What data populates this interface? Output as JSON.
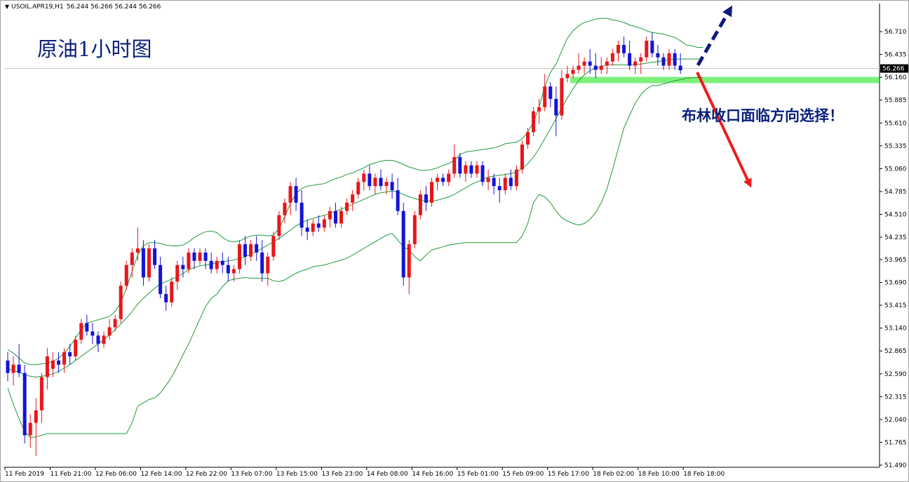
{
  "header": {
    "symbol": "USOIL.APR19,H1",
    "open": "56.244",
    "high": "56.266",
    "low": "56.244",
    "close": "56.266"
  },
  "annotations": {
    "title": "原油1小时图",
    "bollinger_note": "布林收口面临方向选择！"
  },
  "colors": {
    "bull_candle": "#e8161b",
    "bear_candle": "#1414d6",
    "bollinger": "#1e9a3c",
    "support_zone": "#7ef07a",
    "up_arrow": "#0e1a80",
    "down_arrow": "#ee1c1c",
    "price_tag_bg": "#000000",
    "bid_line": "#c0c0c0"
  },
  "chart_data": {
    "type": "candlestick",
    "title": "原油1小时图",
    "symbol": "USOIL.APR19",
    "timeframe": "H1",
    "ylim": [
      51.49,
      56.93
    ],
    "grid": false,
    "current_price": 56.266,
    "price_labels": [
      "56.710",
      "56.435",
      "56.160",
      "55.885",
      "55.610",
      "55.335",
      "55.060",
      "54.785",
      "54.510",
      "54.235",
      "53.965",
      "53.690",
      "53.415",
      "53.140",
      "52.865",
      "52.590",
      "52.315",
      "52.040",
      "51.765",
      "51.490"
    ],
    "time_labels": [
      {
        "label": "11 Feb 2019",
        "index": 0
      },
      {
        "label": "11 Feb 21:00",
        "index": 8
      },
      {
        "label": "12 Feb 06:00",
        "index": 16
      },
      {
        "label": "12 Feb 14:00",
        "index": 24
      },
      {
        "label": "12 Feb 22:00",
        "index": 32
      },
      {
        "label": "13 Feb 07:00",
        "index": 40
      },
      {
        "label": "13 Feb 15:00",
        "index": 48
      },
      {
        "label": "13 Feb 23:00",
        "index": 56
      },
      {
        "label": "14 Feb 08:00",
        "index": 64
      },
      {
        "label": "14 Feb 16:00",
        "index": 72
      },
      {
        "label": "15 Feb 01:00",
        "index": 80
      },
      {
        "label": "15 Feb 09:00",
        "index": 88
      },
      {
        "label": "15 Feb 17:00",
        "index": 96
      },
      {
        "label": "18 Feb 02:00",
        "index": 104
      },
      {
        "label": "18 Feb 10:00",
        "index": 112
      },
      {
        "label": "18 Feb 18:00",
        "index": 120
      }
    ],
    "candles": [
      [
        52.75,
        52.85,
        52.5,
        52.6
      ],
      [
        52.6,
        52.8,
        52.45,
        52.7
      ],
      [
        52.7,
        52.95,
        52.55,
        52.6
      ],
      [
        52.6,
        52.7,
        51.75,
        51.85
      ],
      [
        51.85,
        52.1,
        51.7,
        52.0
      ],
      [
        52.0,
        52.3,
        51.6,
        52.15
      ],
      [
        52.15,
        52.6,
        52.0,
        52.55
      ],
      [
        52.55,
        52.9,
        52.4,
        52.8
      ],
      [
        52.65,
        52.85,
        52.55,
        52.75
      ],
      [
        52.75,
        52.85,
        52.6,
        52.7
      ],
      [
        52.7,
        52.9,
        52.6,
        52.85
      ],
      [
        52.85,
        52.95,
        52.7,
        52.8
      ],
      [
        52.8,
        53.05,
        52.75,
        53.0
      ],
      [
        53.0,
        53.25,
        52.95,
        53.2
      ],
      [
        53.2,
        53.3,
        53.05,
        53.1
      ],
      [
        53.1,
        53.2,
        52.95,
        53.05
      ],
      [
        53.05,
        53.1,
        52.85,
        52.95
      ],
      [
        52.95,
        53.1,
        52.9,
        53.05
      ],
      [
        53.05,
        53.25,
        53.0,
        53.15
      ],
      [
        53.15,
        53.3,
        53.1,
        53.25
      ],
      [
        53.25,
        53.7,
        53.2,
        53.65
      ],
      [
        53.65,
        53.95,
        53.6,
        53.9
      ],
      [
        53.9,
        54.1,
        53.75,
        54.05
      ],
      [
        54.05,
        54.35,
        53.95,
        54.1
      ],
      [
        54.1,
        54.2,
        53.65,
        53.75
      ],
      [
        53.75,
        54.15,
        53.7,
        54.1
      ],
      [
        54.1,
        54.2,
        53.85,
        53.9
      ],
      [
        53.9,
        54.0,
        53.5,
        53.55
      ],
      [
        53.55,
        53.65,
        53.35,
        53.45
      ],
      [
        53.45,
        53.75,
        53.4,
        53.7
      ],
      [
        53.7,
        53.95,
        53.6,
        53.9
      ],
      [
        53.9,
        54.0,
        53.75,
        53.85
      ],
      [
        53.85,
        54.1,
        53.8,
        54.05
      ],
      [
        54.05,
        54.1,
        53.85,
        53.95
      ],
      [
        53.95,
        54.1,
        53.9,
        54.05
      ],
      [
        54.05,
        54.1,
        53.85,
        53.95
      ],
      [
        53.95,
        54.05,
        53.8,
        53.85
      ],
      [
        53.85,
        54.0,
        53.8,
        53.95
      ],
      [
        53.95,
        54.05,
        53.8,
        53.9
      ],
      [
        53.9,
        54.0,
        53.7,
        53.8
      ],
      [
        53.8,
        53.9,
        53.7,
        53.85
      ],
      [
        53.85,
        54.2,
        53.8,
        54.15
      ],
      [
        54.15,
        54.25,
        53.9,
        54.0
      ],
      [
        54.0,
        54.2,
        53.95,
        54.15
      ],
      [
        54.15,
        54.25,
        53.95,
        54.05
      ],
      [
        54.05,
        54.2,
        53.7,
        53.8
      ],
      [
        53.8,
        54.05,
        53.65,
        54.0
      ],
      [
        54.0,
        54.3,
        53.95,
        54.25
      ],
      [
        54.25,
        54.55,
        54.2,
        54.5
      ],
      [
        54.5,
        54.7,
        54.4,
        54.65
      ],
      [
        54.65,
        54.9,
        54.5,
        54.85
      ],
      [
        54.85,
        54.95,
        54.55,
        54.65
      ],
      [
        54.65,
        54.8,
        54.25,
        54.35
      ],
      [
        54.35,
        54.45,
        54.2,
        54.3
      ],
      [
        54.3,
        54.45,
        54.25,
        54.4
      ],
      [
        54.4,
        54.5,
        54.3,
        54.35
      ],
      [
        54.35,
        54.5,
        54.3,
        54.45
      ],
      [
        54.45,
        54.6,
        54.35,
        54.55
      ],
      [
        54.55,
        54.65,
        54.35,
        54.4
      ],
      [
        54.4,
        54.6,
        54.35,
        54.55
      ],
      [
        54.55,
        54.7,
        54.5,
        54.65
      ],
      [
        54.65,
        54.8,
        54.55,
        54.75
      ],
      [
        54.75,
        54.95,
        54.7,
        54.9
      ],
      [
        54.9,
        55.05,
        54.8,
        55.0
      ],
      [
        55.0,
        55.1,
        54.8,
        54.85
      ],
      [
        54.85,
        55.0,
        54.75,
        54.95
      ],
      [
        54.95,
        55.05,
        54.8,
        54.85
      ],
      [
        54.85,
        54.95,
        54.75,
        54.9
      ],
      [
        54.9,
        55.0,
        54.7,
        54.8
      ],
      [
        54.8,
        54.95,
        54.5,
        54.55
      ],
      [
        54.55,
        54.65,
        53.65,
        53.75
      ],
      [
        53.75,
        54.2,
        53.55,
        54.15
      ],
      [
        54.15,
        54.55,
        54.1,
        54.5
      ],
      [
        54.5,
        54.8,
        54.45,
        54.75
      ],
      [
        54.75,
        54.85,
        54.55,
        54.65
      ],
      [
        54.65,
        54.95,
        54.6,
        54.9
      ],
      [
        54.9,
        55.0,
        54.8,
        54.95
      ],
      [
        54.95,
        55.0,
        54.85,
        54.9
      ],
      [
        54.9,
        55.05,
        54.85,
        55.0
      ],
      [
        55.0,
        55.35,
        54.95,
        55.2
      ],
      [
        55.2,
        55.25,
        54.95,
        55.0
      ],
      [
        55.0,
        55.15,
        54.9,
        55.1
      ],
      [
        55.1,
        55.15,
        54.95,
        55.0
      ],
      [
        55.0,
        55.15,
        54.95,
        55.1
      ],
      [
        55.1,
        55.15,
        54.85,
        54.9
      ],
      [
        54.9,
        55.05,
        54.8,
        54.95
      ],
      [
        54.95,
        55.0,
        54.75,
        54.85
      ],
      [
        54.85,
        54.95,
        54.65,
        54.8
      ],
      [
        54.8,
        55.0,
        54.75,
        54.95
      ],
      [
        54.95,
        55.05,
        54.8,
        54.85
      ],
      [
        54.85,
        55.1,
        54.8,
        55.05
      ],
      [
        55.05,
        55.4,
        55.0,
        55.35
      ],
      [
        55.35,
        55.55,
        55.3,
        55.5
      ],
      [
        55.5,
        55.8,
        55.45,
        55.75
      ],
      [
        55.75,
        55.9,
        55.6,
        55.8
      ],
      [
        55.8,
        56.2,
        55.75,
        56.05
      ],
      [
        56.05,
        56.1,
        55.8,
        55.9
      ],
      [
        55.9,
        56.05,
        55.45,
        55.7
      ],
      [
        55.7,
        56.25,
        55.65,
        56.15
      ],
      [
        56.15,
        56.3,
        56.1,
        56.2
      ],
      [
        56.2,
        56.3,
        56.15,
        56.25
      ],
      [
        56.25,
        56.45,
        56.2,
        56.3
      ],
      [
        56.3,
        56.4,
        56.2,
        56.35
      ],
      [
        56.35,
        56.5,
        56.2,
        56.3
      ],
      [
        56.3,
        56.45,
        56.15,
        56.25
      ],
      [
        56.25,
        56.4,
        56.2,
        56.3
      ],
      [
        56.3,
        56.4,
        56.2,
        56.35
      ],
      [
        56.35,
        56.5,
        56.3,
        56.45
      ],
      [
        56.45,
        56.6,
        56.35,
        56.55
      ],
      [
        56.55,
        56.65,
        56.4,
        56.45
      ],
      [
        56.45,
        56.6,
        56.25,
        56.3
      ],
      [
        56.3,
        56.4,
        56.2,
        56.35
      ],
      [
        56.35,
        56.45,
        56.2,
        56.4
      ],
      [
        56.4,
        56.65,
        56.35,
        56.6
      ],
      [
        56.6,
        56.7,
        56.4,
        56.45
      ],
      [
        56.45,
        56.55,
        56.3,
        56.4
      ],
      [
        56.4,
        56.45,
        56.25,
        56.3
      ],
      [
        56.3,
        56.5,
        56.25,
        56.45
      ],
      [
        56.45,
        56.5,
        56.25,
        56.3
      ],
      [
        56.3,
        56.45,
        56.2,
        56.244
      ]
    ],
    "bollinger_upper": [
      52.88,
      52.84,
      52.78,
      52.72,
      52.7,
      52.7,
      52.71,
      52.72,
      52.74,
      52.78,
      52.84,
      52.92,
      53.02,
      53.12,
      53.2,
      53.22,
      53.24,
      53.26,
      53.28,
      53.34,
      53.45,
      53.62,
      53.82,
      54.02,
      54.13,
      54.17,
      54.17,
      54.16,
      54.14,
      54.13,
      54.13,
      54.14,
      54.18,
      54.23,
      54.27,
      54.3,
      54.31,
      54.29,
      54.23,
      54.19,
      54.18,
      54.19,
      54.22,
      54.25,
      54.26,
      54.26,
      54.25,
      54.26,
      54.34,
      54.48,
      54.64,
      54.76,
      54.82,
      54.85,
      54.86,
      54.87,
      54.88,
      54.91,
      54.94,
      54.96,
      54.99,
      55.01,
      55.04,
      55.07,
      55.11,
      55.13,
      55.15,
      55.16,
      55.16,
      55.14,
      55.11,
      55.08,
      55.06,
      55.04,
      55.04,
      55.05,
      55.07,
      55.1,
      55.12,
      55.16,
      55.23,
      55.26,
      55.27,
      55.28,
      55.29,
      55.3,
      55.31,
      55.33,
      55.36,
      55.37,
      55.38,
      55.42,
      55.5,
      55.62,
      55.8,
      56.05,
      56.22,
      56.32,
      56.48,
      56.63,
      56.72,
      56.78,
      56.82,
      56.84,
      56.86,
      56.87,
      56.87,
      56.85,
      56.84,
      56.82,
      56.79,
      56.77,
      56.75,
      56.72,
      56.7,
      56.69,
      56.68,
      56.66,
      56.64,
      56.6,
      56.55,
      56.54,
      56.52,
      56.52
    ],
    "bollinger_middle": [
      52.65,
      52.63,
      52.61,
      52.58,
      52.56,
      52.55,
      52.56,
      52.57,
      52.59,
      52.62,
      52.66,
      52.7,
      52.75,
      52.8,
      52.85,
      52.9,
      52.95,
      53.0,
      53.06,
      53.12,
      53.19,
      53.26,
      53.34,
      53.43,
      53.5,
      53.56,
      53.62,
      53.67,
      53.7,
      53.73,
      53.76,
      53.8,
      53.84,
      53.87,
      53.89,
      53.9,
      53.91,
      53.93,
      53.94,
      53.95,
      53.96,
      53.98,
      54.0,
      54.03,
      54.06,
      54.1,
      54.14,
      54.18,
      54.22,
      54.27,
      54.32,
      54.37,
      54.41,
      54.44,
      54.46,
      54.48,
      54.5,
      54.52,
      54.55,
      54.57,
      54.6,
      54.63,
      54.66,
      54.69,
      54.72,
      54.75,
      54.77,
      54.78,
      54.79,
      54.78,
      54.75,
      54.72,
      54.7,
      54.68,
      54.67,
      54.67,
      54.68,
      54.7,
      54.72,
      54.75,
      54.79,
      54.83,
      54.87,
      54.9,
      54.93,
      54.96,
      54.97,
      54.98,
      54.99,
      55.0,
      55.02,
      55.06,
      55.12,
      55.2,
      55.3,
      55.42,
      55.54,
      55.66,
      55.79,
      55.91,
      56.02,
      56.12,
      56.19,
      56.24,
      56.27,
      56.29,
      56.31,
      56.31,
      56.31,
      56.31,
      56.31,
      56.31,
      56.32,
      56.33,
      56.34,
      56.35,
      56.36,
      56.37,
      56.38,
      56.38,
      56.38,
      56.38,
      56.38,
      56.38
    ],
    "bollinger_lower": [
      52.42,
      52.22,
      52.05,
      51.9,
      51.82,
      51.83,
      51.85,
      51.87,
      51.87,
      51.87,
      51.87,
      51.87,
      51.87,
      51.87,
      51.87,
      51.87,
      51.87,
      51.87,
      51.87,
      51.87,
      51.87,
      51.87,
      52.0,
      52.2,
      52.24,
      52.28,
      52.3,
      52.36,
      52.45,
      52.55,
      52.68,
      52.82,
      52.95,
      53.1,
      53.25,
      53.4,
      53.5,
      53.55,
      53.64,
      53.71,
      53.73,
      53.74,
      53.75,
      53.74,
      53.74,
      53.74,
      53.74,
      53.71,
      53.7,
      53.72,
      53.76,
      53.8,
      53.83,
      53.85,
      53.88,
      53.89,
      53.9,
      53.92,
      53.94,
      53.96,
      53.98,
      54.02,
      54.06,
      54.1,
      54.14,
      54.18,
      54.22,
      54.26,
      54.28,
      54.2,
      54.12,
      54.08,
      54.0,
      53.95,
      54.02,
      54.08,
      54.1,
      54.12,
      54.14,
      54.15,
      54.16,
      54.17,
      54.17,
      54.17,
      54.17,
      54.17,
      54.17,
      54.17,
      54.17,
      54.17,
      54.17,
      54.25,
      54.4,
      54.65,
      54.75,
      54.72,
      54.65,
      54.55,
      54.47,
      54.43,
      54.4,
      54.38,
      54.4,
      54.45,
      54.53,
      54.65,
      54.82,
      55.05,
      55.3,
      55.55,
      55.7,
      55.85,
      55.95,
      56.02,
      56.06,
      56.06,
      56.08,
      56.1,
      56.12,
      56.13,
      56.15,
      56.15,
      56.16,
      56.16
    ]
  }
}
